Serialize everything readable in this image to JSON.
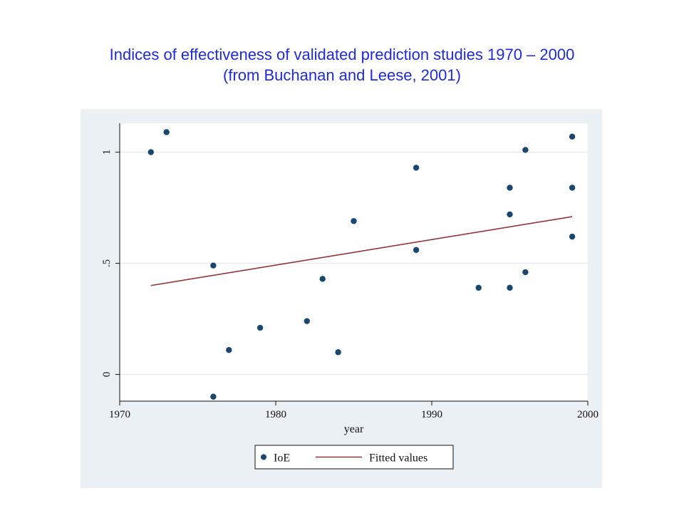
{
  "title_line1": "Indices of effectiveness of validated prediction studies 1970 – 2000",
  "title_line2": "(from Buchanan and Leese, 2001)",
  "colors": {
    "title": "#1f2bd6",
    "outer_background": "#eaf0f4",
    "plot_background": "#ffffff",
    "gridline": "#e3ebf0",
    "points": "#1a476f",
    "fit_line": "#90353b"
  },
  "chart_data": {
    "type": "scatter",
    "xlabel": "year",
    "ylabel": "",
    "xlim": [
      1970,
      2000
    ],
    "ylim": [
      -0.12,
      1.13
    ],
    "xticks": [
      1970,
      1980,
      1990,
      2000
    ],
    "xtick_labels": [
      "1970",
      "1980",
      "1990",
      "2000"
    ],
    "yticks": [
      0,
      0.5,
      1
    ],
    "ytick_labels": [
      "0",
      ".5",
      "1"
    ],
    "grid": true,
    "legend_position": "bottom",
    "series": [
      {
        "name": "IoE",
        "kind": "scatter",
        "x": [
          1972,
          1973,
          1976,
          1976,
          1977,
          1979,
          1982,
          1983,
          1984,
          1985,
          1989,
          1989,
          1993,
          1995,
          1995,
          1995,
          1996,
          1996,
          1999,
          1999,
          1999
        ],
        "y": [
          1.0,
          1.09,
          0.49,
          -0.1,
          0.11,
          0.21,
          0.24,
          0.43,
          0.1,
          0.69,
          0.93,
          0.56,
          0.39,
          0.84,
          0.72,
          0.39,
          1.01,
          0.46,
          1.07,
          0.84,
          0.62
        ]
      },
      {
        "name": "Fitted values",
        "kind": "line",
        "x": [
          1972,
          1999
        ],
        "y": [
          0.4,
          0.71
        ]
      }
    ]
  }
}
